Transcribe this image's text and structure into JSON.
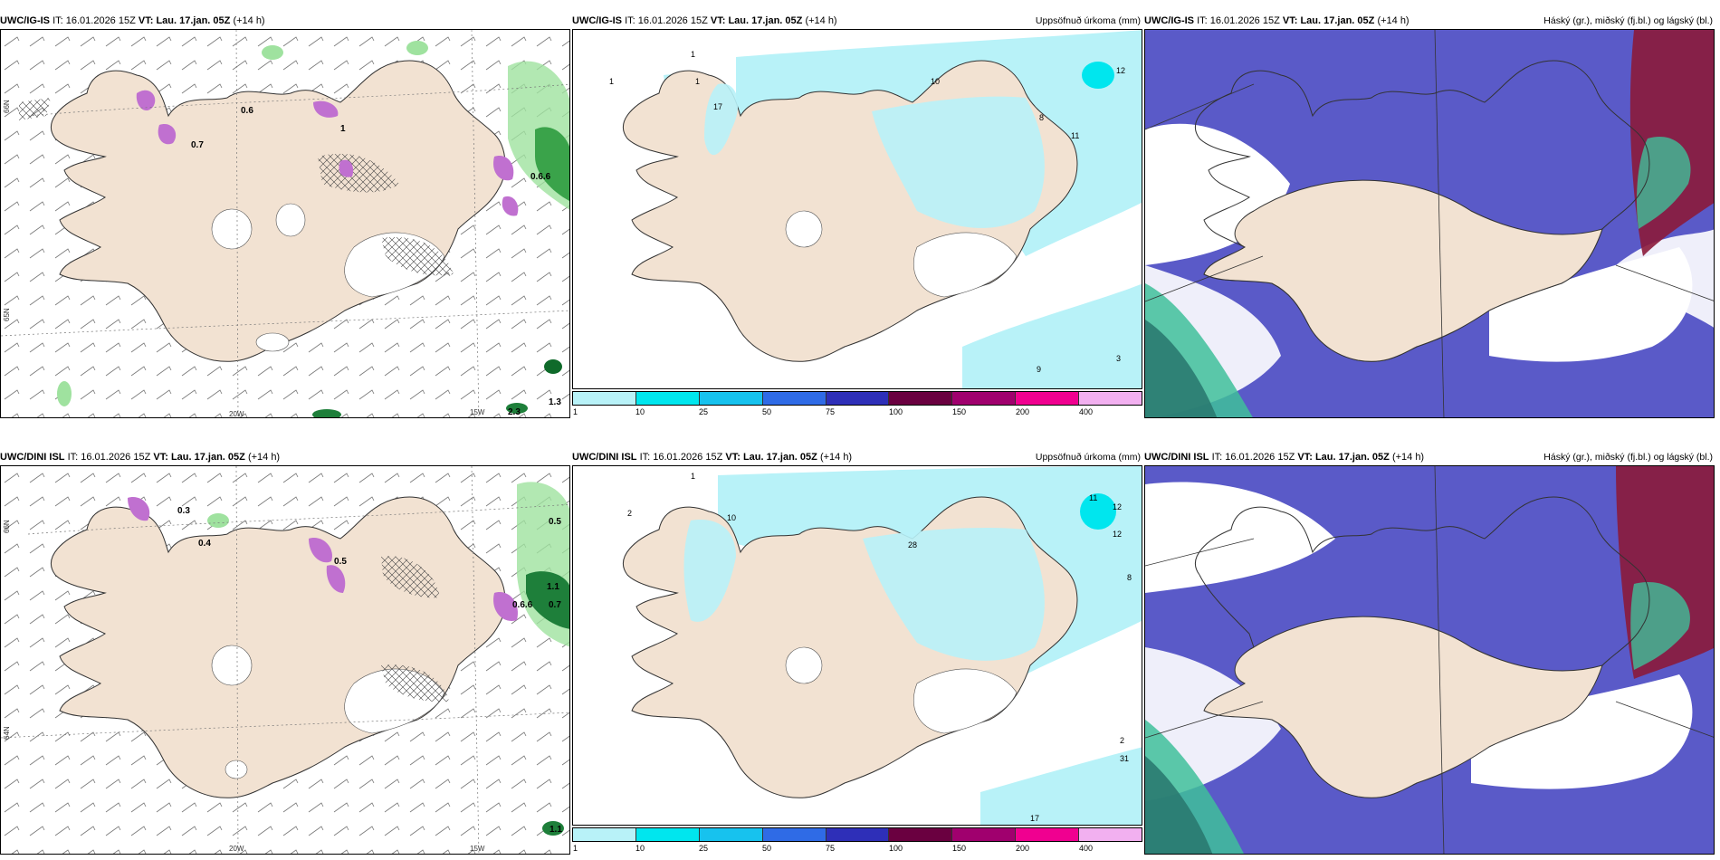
{
  "rows": [
    {
      "model": "UWC/IG-IS",
      "it_prefix": "IT:",
      "it_value": "16.01.2026 15Z",
      "vt_prefix": "VT:",
      "vt_value": "Lau. 17.jan. 05Z",
      "lead": "(+14 h)"
    },
    {
      "model": "UWC/DINI ISL",
      "it_prefix": "IT:",
      "it_value": "16.01.2026 15Z",
      "vt_prefix": "VT:",
      "vt_value": "Lau. 17.jan. 05Z",
      "lead": "(+14 h)"
    }
  ],
  "precip_title": "Uppsöfnuð úrkoma (mm)",
  "cloud_title": "Háský (gr.), miðský (fj.bl.) og lágský (bl.)",
  "colorbar": {
    "ticks": [
      "1",
      "10",
      "25",
      "50",
      "75",
      "100",
      "150",
      "200",
      "400"
    ],
    "colors": [
      "#b8f2f8",
      "#00e6ee",
      "#17c2ee",
      "#2f6be6",
      "#2e2fb8",
      "#6a0040",
      "#a0006e",
      "#f00090",
      "#f2b0f0"
    ]
  },
  "axis_labels": {
    "lon_20w": "20W",
    "lon_15w": "15W",
    "lat_66n": "66N",
    "lat_65n": "65N",
    "lat_64n": "64N"
  },
  "wind_values_top": [
    "0.6",
    "0.7",
    "1",
    "0.6.6",
    "1.3",
    "2.3"
  ],
  "wind_values_bottom": [
    "0.3",
    "0.4",
    "0.5",
    "0.5",
    "1.1",
    "0.6.6",
    "0.7",
    "1.1"
  ],
  "precip_values_top": [
    "1",
    "1",
    "1",
    "17",
    "10",
    "12",
    "9",
    "3",
    "8",
    "11"
  ],
  "precip_values_bottom": [
    "1",
    "2",
    "10",
    "28",
    "11",
    "12",
    "12",
    "8",
    "2",
    "31",
    "17"
  ],
  "colors": {
    "land": "#f2e2d2",
    "sea": "#ffffff",
    "precip_light": "#b8f2f8",
    "cloud_high": "#5a5ac8",
    "cloud_mid": "#8b1a3a",
    "cloud_low": "#3fbf9a",
    "wind_green": "#7fd87f"
  }
}
